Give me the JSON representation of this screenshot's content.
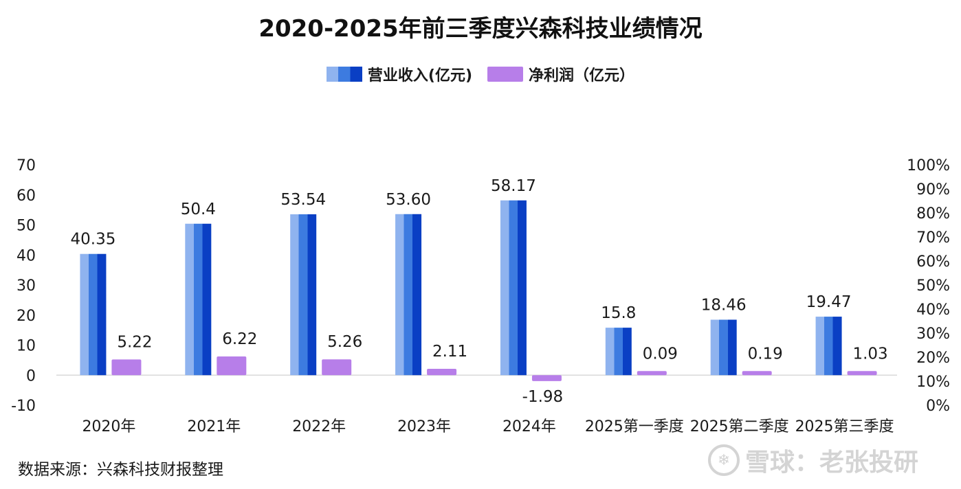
{
  "chart_data": {
    "type": "bar",
    "title": "2020-2025年前三季度兴森科技业绩情况",
    "categories": [
      "2020年",
      "2021年",
      "2022年",
      "2023年",
      "2024年",
      "2025第一季度",
      "2025第二季度",
      "2025第三季度"
    ],
    "series": [
      {
        "name": "营业收入(亿元)",
        "values": [
          40.35,
          50.4,
          53.54,
          53.6,
          58.17,
          15.8,
          18.46,
          19.47
        ],
        "labels": [
          "40.35",
          "50.4",
          "53.54",
          "53.60",
          "58.17",
          "15.8",
          "18.46",
          "19.47"
        ],
        "color": "#1a5fd8"
      },
      {
        "name": "净利润（亿元）",
        "values": [
          5.22,
          6.22,
          5.26,
          2.11,
          -1.98,
          0.09,
          0.19,
          1.03
        ],
        "labels": [
          "5.22",
          "6.22",
          "5.26",
          "2.11",
          "-1.98",
          "0.09",
          "0.19",
          "1.03"
        ],
        "color": "#b77ee9"
      }
    ],
    "y_left": {
      "ticks": [
        "70",
        "60",
        "50",
        "40",
        "30",
        "20",
        "10",
        "0",
        "-10"
      ],
      "ylim": [
        -10,
        70
      ]
    },
    "y_right": {
      "ticks": [
        "100%",
        "90%",
        "80%",
        "70%",
        "60%",
        "50%",
        "40%",
        "30%",
        "20%",
        "10%",
        "0%"
      ],
      "ylim": [
        0,
        100
      ]
    },
    "legend_position": "top-center"
  },
  "legend": {
    "revenue_label": "营业收入(亿元)",
    "profit_label": "净利润（亿元）"
  },
  "source_note": "数据来源：兴森科技财报整理",
  "watermark": {
    "logo_glyph": "❄",
    "text": "雪球：老张投研"
  }
}
